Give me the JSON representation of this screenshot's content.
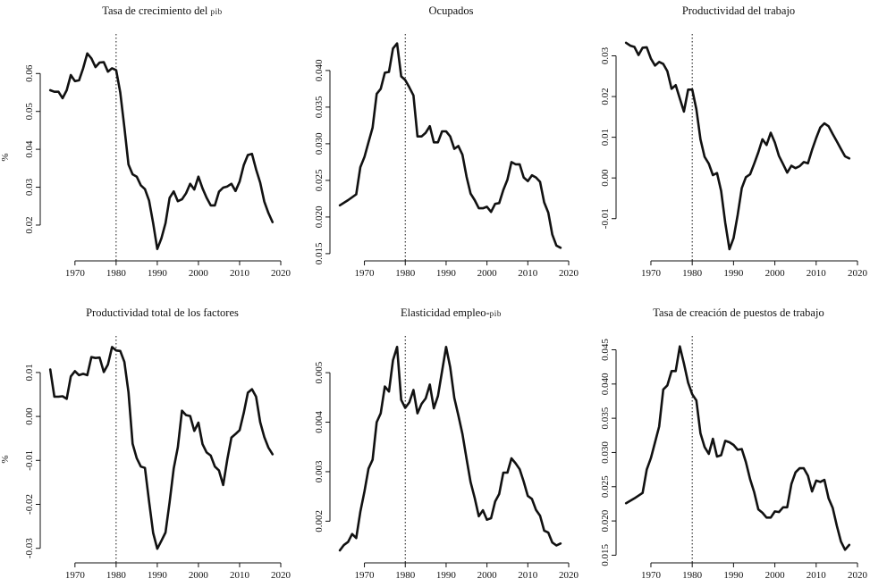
{
  "chart_data": [
    {
      "type": "line",
      "title": "Tasa de crecimiento del PIB",
      "ylabel": "%",
      "xlabel": "",
      "xlim": [
        1962,
        2020
      ],
      "ylim": [
        0.0115,
        0.0695
      ],
      "xticks": [
        1970,
        1980,
        1990,
        2000,
        2010,
        2020
      ],
      "yticks": [
        0.02,
        0.03,
        0.04,
        0.05,
        0.06
      ],
      "ytick_labels": [
        "0.02",
        "0.03",
        "0.04",
        "0.05",
        "0.06"
      ],
      "reference_x": 1980,
      "series": [
        {
          "name": "Tasa de crecimiento del PIB",
          "x": [
            1964,
            1965,
            1966,
            1967,
            1968,
            1969,
            1970,
            1971,
            1972,
            1973,
            1974,
            1975,
            1976,
            1977,
            1978,
            1979,
            1980,
            1981,
            1982,
            1983,
            1984,
            1985,
            1986,
            1987,
            1988,
            1989,
            1990,
            1991,
            1992,
            1993,
            1994,
            1995,
            1996,
            1997,
            1998,
            1999,
            2000,
            2001,
            2002,
            2003,
            2004,
            2005,
            2006,
            2007,
            2008,
            2009,
            2010,
            2011,
            2012,
            2013,
            2014,
            2015,
            2016,
            2017,
            2018
          ],
          "values": [
            0.0556,
            0.0552,
            0.0552,
            0.0535,
            0.0556,
            0.0596,
            0.058,
            0.0582,
            0.0614,
            0.0653,
            0.064,
            0.0617,
            0.0629,
            0.063,
            0.0605,
            0.0614,
            0.0609,
            0.055,
            0.0458,
            0.036,
            0.0334,
            0.0328,
            0.0305,
            0.0295,
            0.0265,
            0.0205,
            0.0137,
            0.0165,
            0.0205,
            0.0272,
            0.0289,
            0.0263,
            0.0268,
            0.0284,
            0.0309,
            0.0294,
            0.0328,
            0.0297,
            0.0272,
            0.0252,
            0.0252,
            0.0288,
            0.0299,
            0.0302,
            0.0309,
            0.029,
            0.0315,
            0.0358,
            0.0385,
            0.0388,
            0.0347,
            0.0312,
            0.0262,
            0.0232,
            0.0208
          ]
        }
      ]
    },
    {
      "type": "line",
      "title": "Ocupados",
      "ylabel": "",
      "xlabel": "",
      "xlim": [
        1962,
        2020
      ],
      "ylim": [
        0.0145,
        0.0445
      ],
      "xticks": [
        1970,
        1980,
        1990,
        2000,
        2010,
        2020
      ],
      "yticks": [
        0.015,
        0.02,
        0.025,
        0.03,
        0.035,
        0.04
      ],
      "ytick_labels": [
        "0.015",
        "0.020",
        "0.025",
        "0.030",
        "0.035",
        "0.040"
      ],
      "reference_x": 1980,
      "series": [
        {
          "name": "Ocupados",
          "x": [
            1964,
            1966,
            1968,
            1969,
            1970,
            1971,
            1972,
            1973,
            1974,
            1975,
            1976,
            1977,
            1978,
            1979,
            1980,
            1981,
            1982,
            1983,
            1984,
            1985,
            1986,
            1987,
            1988,
            1989,
            1990,
            1991,
            1992,
            1993,
            1994,
            1995,
            1996,
            1997,
            1998,
            1999,
            2000,
            2001,
            2002,
            2003,
            2004,
            2005,
            2006,
            2007,
            2008,
            2009,
            2010,
            2011,
            2012,
            2013,
            2014,
            2015,
            2016,
            2017,
            2018
          ],
          "values": [
            0.0216,
            0.0223,
            0.0231,
            0.0268,
            0.0282,
            0.0302,
            0.0322,
            0.0368,
            0.0375,
            0.0397,
            0.0398,
            0.043,
            0.0437,
            0.0392,
            0.0387,
            0.0377,
            0.0366,
            0.031,
            0.031,
            0.0315,
            0.0324,
            0.0302,
            0.0302,
            0.0317,
            0.0317,
            0.031,
            0.0293,
            0.0297,
            0.0285,
            0.0255,
            0.0232,
            0.0223,
            0.0212,
            0.0212,
            0.0214,
            0.0207,
            0.0218,
            0.0219,
            0.0237,
            0.0251,
            0.0275,
            0.0272,
            0.0272,
            0.0254,
            0.0249,
            0.0257,
            0.0254,
            0.0248,
            0.022,
            0.0206,
            0.0176,
            0.0161,
            0.0158
          ]
        }
      ]
    },
    {
      "type": "line",
      "title": "Productividad del trabajo",
      "ylabel": "",
      "xlabel": "",
      "xlim": [
        1962,
        2020
      ],
      "ylim": [
        -0.0195,
        0.0345
      ],
      "xticks": [
        1970,
        1980,
        1990,
        2000,
        2010,
        2020
      ],
      "yticks": [
        -0.01,
        0.0,
        0.01,
        0.02,
        0.03
      ],
      "ytick_labels": [
        "-0.01",
        "0.00",
        "0.01",
        "0.02",
        "0.03"
      ],
      "reference_x": 1980,
      "series": [
        {
          "name": "Productividad del trabajo",
          "x": [
            1964,
            1965,
            1966,
            1967,
            1968,
            1969,
            1970,
            1971,
            1972,
            1973,
            1974,
            1975,
            1976,
            1977,
            1978,
            1979,
            1980,
            1981,
            1982,
            1983,
            1984,
            1985,
            1986,
            1987,
            1988,
            1989,
            1990,
            1991,
            1992,
            1993,
            1994,
            1995,
            1996,
            1997,
            1998,
            1999,
            2000,
            2001,
            2002,
            2003,
            2004,
            2005,
            2006,
            2007,
            2008,
            2009,
            2010,
            2011,
            2012,
            2013,
            2014,
            2015,
            2016,
            2017,
            2018
          ],
          "values": [
            0.0332,
            0.0325,
            0.0322,
            0.0302,
            0.032,
            0.0321,
            0.0293,
            0.0276,
            0.0285,
            0.028,
            0.0262,
            0.0219,
            0.0228,
            0.0195,
            0.0163,
            0.0217,
            0.0217,
            0.0169,
            0.0095,
            0.0052,
            0.0035,
            0.0007,
            0.0012,
            -0.0032,
            -0.011,
            -0.0175,
            -0.0148,
            -0.0091,
            -0.0025,
            0.0002,
            0.0009,
            0.0035,
            0.0063,
            0.0095,
            0.0081,
            0.0111,
            0.0087,
            0.0054,
            0.0034,
            0.0013,
            0.003,
            0.0024,
            0.0029,
            0.0039,
            0.0036,
            0.0069,
            0.0098,
            0.0124,
            0.0134,
            0.0127,
            0.0108,
            0.009,
            0.0071,
            0.0053,
            0.0048
          ]
        }
      ]
    },
    {
      "type": "line",
      "title": "Productividad total de los factores",
      "ylabel": "%",
      "xlabel": "",
      "xlim": [
        1962,
        2020
      ],
      "ylim": [
        -0.0325,
        0.0175
      ],
      "xticks": [
        1970,
        1980,
        1990,
        2000,
        2010,
        2020
      ],
      "yticks": [
        -0.03,
        -0.02,
        -0.01,
        0.0,
        0.01
      ],
      "ytick_labels": [
        "-0.03",
        "-0.02",
        "-0.01",
        "0.00",
        "0.01"
      ],
      "reference_x": 1980,
      "series": [
        {
          "name": "Productividad total de los factores",
          "x": [
            1964,
            1965,
            1966,
            1967,
            1968,
            1969,
            1970,
            1971,
            1972,
            1973,
            1974,
            1975,
            1976,
            1977,
            1978,
            1979,
            1980,
            1981,
            1982,
            1983,
            1984,
            1985,
            1986,
            1987,
            1988,
            1989,
            1990,
            1991,
            1992,
            1993,
            1994,
            1995,
            1996,
            1997,
            1998,
            1999,
            2000,
            2001,
            2002,
            2003,
            2004,
            2005,
            2006,
            2007,
            2008,
            2009,
            2010,
            2011,
            2012,
            2013,
            2014,
            2015,
            2016,
            2017,
            2018
          ],
          "values": [
            0.0107,
            0.0045,
            0.0045,
            0.0046,
            0.004,
            0.0091,
            0.0103,
            0.0094,
            0.0097,
            0.0094,
            0.0135,
            0.0133,
            0.0134,
            0.0101,
            0.0118,
            0.0158,
            0.015,
            0.0149,
            0.0124,
            0.0055,
            -0.0062,
            -0.0095,
            -0.0114,
            -0.0117,
            -0.0193,
            -0.0265,
            -0.0301,
            -0.0283,
            -0.0264,
            -0.0195,
            -0.0118,
            -0.007,
            0.0013,
            0.0003,
            0.0001,
            -0.0033,
            -0.0014,
            -0.0063,
            -0.0082,
            -0.0089,
            -0.0114,
            -0.0123,
            -0.0156,
            -0.0098,
            -0.0048,
            -0.004,
            -0.0031,
            0.0008,
            0.0054,
            0.0062,
            0.0045,
            -0.0013,
            -0.0047,
            -0.0071,
            -0.0086
          ]
        }
      ]
    },
    {
      "type": "line",
      "title": "Elasticidad empleo-PIB",
      "ylabel": "",
      "xlabel": "",
      "xlim": [
        1962,
        2020
      ],
      "ylim": [
        0.00123,
        0.00567
      ],
      "xticks": [
        1970,
        1980,
        1990,
        2000,
        2010,
        2020
      ],
      "yticks": [
        0.002,
        0.003,
        0.004,
        0.005
      ],
      "ytick_labels": [
        "0.002",
        "0.003",
        "0.004",
        "0.005"
      ],
      "reference_x": 1980,
      "series": [
        {
          "name": "Elasticidad empleo-PIB",
          "x": [
            1964,
            1965,
            1966,
            1967,
            1968,
            1969,
            1970,
            1971,
            1972,
            1973,
            1974,
            1975,
            1976,
            1977,
            1978,
            1979,
            1980,
            1981,
            1982,
            1983,
            1984,
            1985,
            1986,
            1987,
            1988,
            1989,
            1990,
            1991,
            1992,
            1993,
            1994,
            1995,
            1996,
            1997,
            1998,
            1999,
            2000,
            2001,
            2002,
            2003,
            2004,
            2005,
            2006,
            2007,
            2008,
            2009,
            2010,
            2011,
            2012,
            2013,
            2014,
            2015,
            2016,
            2017,
            2018
          ],
          "values": [
            0.00141,
            0.00152,
            0.00158,
            0.00174,
            0.00166,
            0.00219,
            0.0026,
            0.00306,
            0.00324,
            0.004,
            0.00418,
            0.00472,
            0.00462,
            0.00525,
            0.00552,
            0.00445,
            0.00429,
            0.0044,
            0.00465,
            0.00418,
            0.00437,
            0.00448,
            0.00476,
            0.00428,
            0.00453,
            0.00503,
            0.00552,
            0.00511,
            0.00449,
            0.00414,
            0.00376,
            0.00326,
            0.00279,
            0.00247,
            0.0021,
            0.00222,
            0.00203,
            0.00206,
            0.0024,
            0.00255,
            0.00298,
            0.00298,
            0.00327,
            0.00317,
            0.00305,
            0.0028,
            0.00251,
            0.00245,
            0.00223,
            0.00211,
            0.00181,
            0.00177,
            0.00157,
            0.00151,
            0.00155
          ]
        }
      ]
    },
    {
      "type": "line",
      "title": "Tasa de creación de puestos de trabajo",
      "ylabel": "",
      "xlabel": "",
      "xlim": [
        1962,
        2020
      ],
      "ylim": [
        0.0144,
        0.0465
      ],
      "xticks": [
        1970,
        1980,
        1990,
        2000,
        2010,
        2020
      ],
      "yticks": [
        0.015,
        0.02,
        0.025,
        0.03,
        0.035,
        0.04,
        0.045
      ],
      "ytick_labels": [
        "0.015",
        "0.020",
        "0.025",
        "0.030",
        "0.035",
        "0.040",
        "0.045"
      ],
      "reference_x": 1980,
      "series": [
        {
          "name": "Tasa de creación de puestos de trabajo",
          "x": [
            1964,
            1966,
            1968,
            1969,
            1970,
            1971,
            1972,
            1973,
            1974,
            1975,
            1976,
            1977,
            1978,
            1979,
            1980,
            1981,
            1982,
            1983,
            1984,
            1985,
            1986,
            1987,
            1988,
            1989,
            1990,
            1991,
            1992,
            1993,
            1994,
            1995,
            1996,
            1997,
            1998,
            1999,
            2000,
            2001,
            2002,
            2003,
            2004,
            2005,
            2006,
            2007,
            2008,
            2009,
            2010,
            2011,
            2012,
            2013,
            2014,
            2015,
            2016,
            2017,
            2018
          ],
          "values": [
            0.0226,
            0.0233,
            0.0241,
            0.0275,
            0.0292,
            0.0315,
            0.0338,
            0.0392,
            0.0398,
            0.0419,
            0.0419,
            0.0455,
            0.043,
            0.0402,
            0.0385,
            0.0376,
            0.0328,
            0.0308,
            0.0298,
            0.032,
            0.0294,
            0.0296,
            0.0317,
            0.0315,
            0.0311,
            0.0304,
            0.0305,
            0.0286,
            0.0261,
            0.0242,
            0.0217,
            0.0212,
            0.0205,
            0.0205,
            0.0214,
            0.0213,
            0.022,
            0.022,
            0.0254,
            0.0271,
            0.0277,
            0.0277,
            0.0266,
            0.0243,
            0.0259,
            0.0257,
            0.026,
            0.0233,
            0.0219,
            0.0193,
            0.017,
            0.0158,
            0.0165
          ]
        }
      ]
    }
  ]
}
